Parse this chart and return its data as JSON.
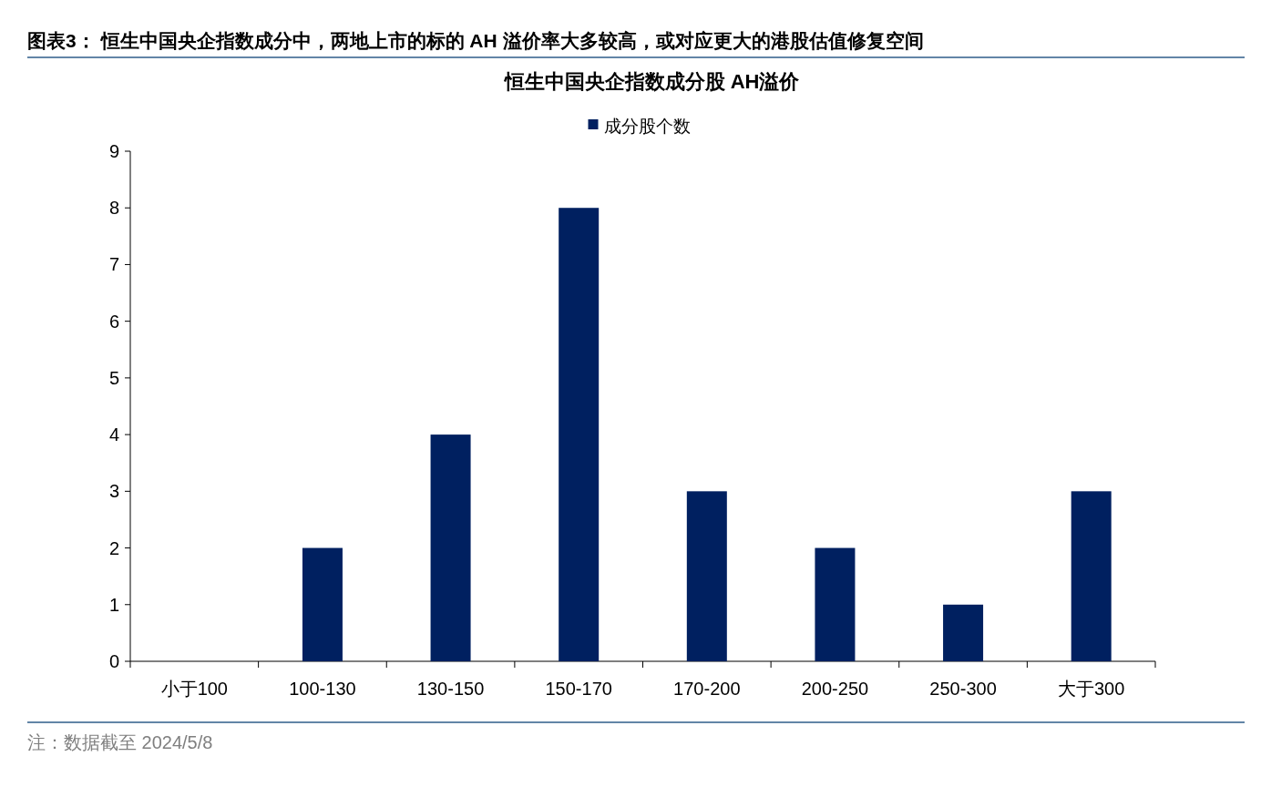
{
  "chart_data": {
    "type": "bar",
    "title": "图表3：  恒生中国央企指数成分中，两地上市的标的 AH 溢价率大多较高，或对应更大的港股估值修复空间",
    "subtitle": "恒生中国央企指数成分股 AH溢价",
    "categories": [
      "小于100",
      "100-130",
      "130-150",
      "150-170",
      "170-200",
      "200-250",
      "250-300",
      "大于300"
    ],
    "series": [
      {
        "name": "成分股个数",
        "color": "#002060",
        "values": [
          0,
          2,
          4,
          8,
          3,
          2,
          1,
          3
        ]
      }
    ],
    "ylim": [
      0,
      9
    ],
    "yticks": [
      0,
      1,
      2,
      3,
      4,
      5,
      6,
      7,
      8,
      9
    ],
    "grid": false,
    "legend": "top",
    "annotations": [
      "注：数据截至 2024/5/8"
    ]
  }
}
